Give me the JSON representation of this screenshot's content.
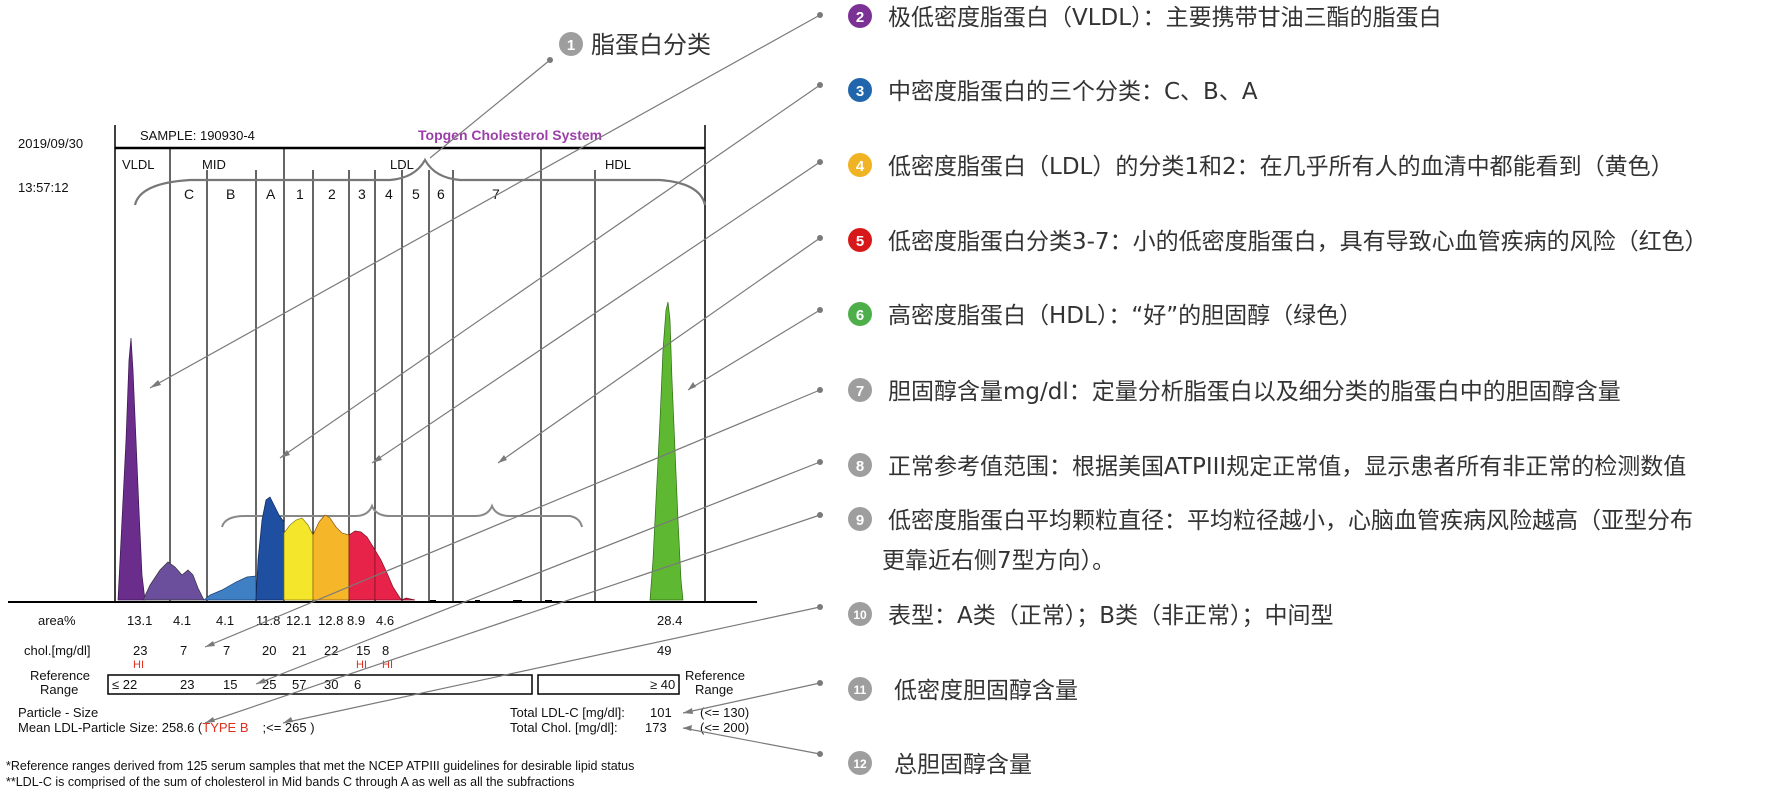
{
  "report": {
    "date": "2019/09/30",
    "time": "13:57:12",
    "sample": "SAMPLE: 190930-4",
    "system": "Topgen Cholesterol System",
    "groups": {
      "vldl": "VLDL",
      "mid": "MID",
      "ldl": "LDL",
      "hdl": "HDL"
    },
    "bands": [
      "C",
      "B",
      "A",
      "1",
      "2",
      "3",
      "4",
      "5",
      "6",
      "7"
    ],
    "rows": {
      "area_label": "area%",
      "area_values": [
        "13.1",
        "4.1",
        "4.1",
        "11.8",
        "12.1",
        "12.8",
        "8.9",
        "4.6"
      ],
      "area_hdl": "28.4",
      "chol_label": "chol.[mg/dl]",
      "chol_values": [
        "23",
        "7",
        "7",
        "20",
        "21",
        "22",
        "15",
        "8"
      ],
      "chol_hdl": "49",
      "hi_label": "HI",
      "ref_label_1": "Reference",
      "ref_label_2": "Range",
      "ref_values": [
        "≤ 22",
        "23",
        "15",
        "25",
        "57",
        "30",
        "6"
      ],
      "ref_hdl": "≥ 40"
    },
    "particle_size_label": "Particle - Size",
    "mean_ldl_label": "Mean LDL-Particle Size: 258.6 (",
    "type_label": "TYPE B",
    "mean_ldl_ref": ";<= 265 )",
    "total_ldl_label": "Total LDL-C [mg/dl]:",
    "total_ldl_value": "101",
    "total_ldl_ref": "(<= 130)",
    "total_chol_label": "Total Chol. [mg/dl]:",
    "total_chol_value": "173",
    "total_chol_ref": "(<= 200)",
    "footnote_1": "*Reference ranges derived from 125 serum samples that met the NCEP ATPIII guidelines for desirable lipid status",
    "footnote_2": "**LDL-C is comprised of the sum of cholesterol in Mid bands C through A as well as all the subfractions"
  },
  "annotations": {
    "a1": {
      "num": "1",
      "text": "脂蛋白分类",
      "color": "#9e9e9e"
    },
    "items": [
      {
        "num": "2",
        "text": "极低密度脂蛋白（VLDL）：主要携带甘油三酯的脂蛋白",
        "color": "#7b3294"
      },
      {
        "num": "3",
        "text": "中密度脂蛋白的三个分类：C、B、A",
        "color": "#2166ac"
      },
      {
        "num": "4",
        "text": "低密度脂蛋白（LDL）的分类1和2：在几乎所有人的血清中都能看到（黄色）",
        "color": "#f0b323"
      },
      {
        "num": "5",
        "text": "低密度脂蛋白分类3-7：小的低密度脂蛋白，具有导致心血管疾病的风险（红色）",
        "color": "#d7191c"
      },
      {
        "num": "6",
        "text": "高密度脂蛋白（HDL）：“好”的胆固醇（绿色）",
        "color": "#4daf4a"
      },
      {
        "num": "7",
        "text": "胆固醇含量mg/dl：定量分析脂蛋白以及细分类的脂蛋白中的胆固醇含量",
        "color": "#9e9e9e"
      },
      {
        "num": "8",
        "text": "正常参考值范围：根据美国ATPIII规定正常值，显示患者所有非正常的检测数值",
        "color": "#9e9e9e"
      },
      {
        "num": "9",
        "text": "低密度脂蛋白平均颗粒直径：平均粒径越小，心脑血管疾病风险越高（亚型分布",
        "color": "#9e9e9e"
      },
      {
        "num": "",
        "text": "更靠近右侧7型方向）。",
        "color": ""
      },
      {
        "num": "10",
        "text": "表型：A类（正常）；B类（非正常）；中间型",
        "color": "#9e9e9e"
      },
      {
        "num": "11",
        "text": "低密度胆固醇含量",
        "color": "#9e9e9e"
      },
      {
        "num": "12",
        "text": "总胆固醇含量",
        "color": "#9e9e9e"
      }
    ]
  },
  "colors": {
    "vldl": "#6a2d8c",
    "mid": "#6b4f9c",
    "band_a": "#1f4fa0",
    "band_b": "#3f7fc4",
    "ldl_yellow": "#f3e62b",
    "ldl_orange": "#f5b62a",
    "ldl_red": "#e8234a",
    "hdl": "#5fb832",
    "hi": "#e03020",
    "system": "#9b3fa8",
    "leader": "#7a7a7a"
  }
}
